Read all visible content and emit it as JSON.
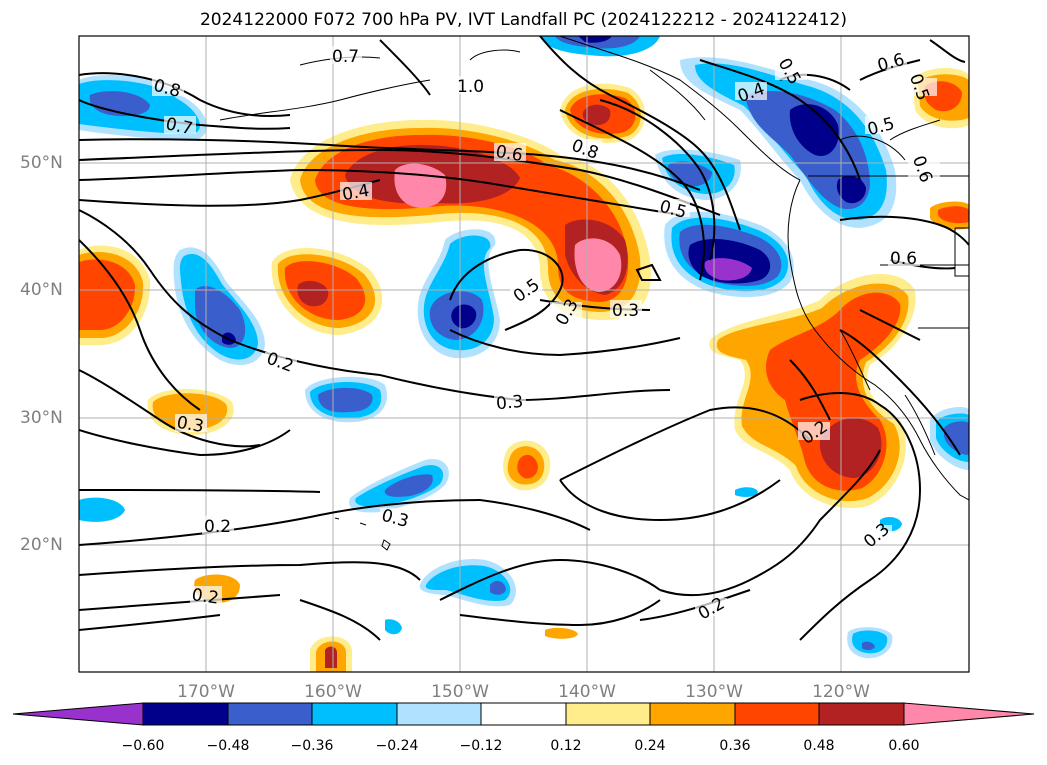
{
  "title": "2024122000 F072 700 hPa PV, IVT Landfall PC (2024122212 - 2024122412)",
  "map": {
    "lon_ticks": [
      "170°W",
      "160°W",
      "150°W",
      "140°W",
      "130°W",
      "120°W"
    ],
    "lat_ticks": [
      "50°N",
      "40°N",
      "30°N",
      "20°N"
    ],
    "contour_labels": [
      "0.8",
      "0.7",
      "1.0",
      "0.7",
      "0.6",
      "0.8",
      "0.4",
      "0.5",
      "0.5",
      "0.6",
      "0.5",
      "0.5",
      "0.4",
      "0.5",
      "0.3",
      "0.2",
      "0.3",
      "0.3",
      "0.3",
      "0.2",
      "0.2",
      "0.2",
      "0.3",
      "0.2",
      "0.3",
      "0.6",
      "0.6"
    ]
  },
  "colorbar": {
    "tick_labels": [
      "−0.60",
      "−0.48",
      "−0.36",
      "−0.24",
      "−0.12",
      "0.12",
      "0.24",
      "0.36",
      "0.48",
      "0.60"
    ],
    "colors": [
      "#9932CC",
      "#00008B",
      "#3A5FCD",
      "#00BFFF",
      "#B0E2FF",
      "#FFFFFF",
      "#FFEC8B",
      "#FFA500",
      "#FF4500",
      "#B22222",
      "#FF88AA"
    ]
  }
}
